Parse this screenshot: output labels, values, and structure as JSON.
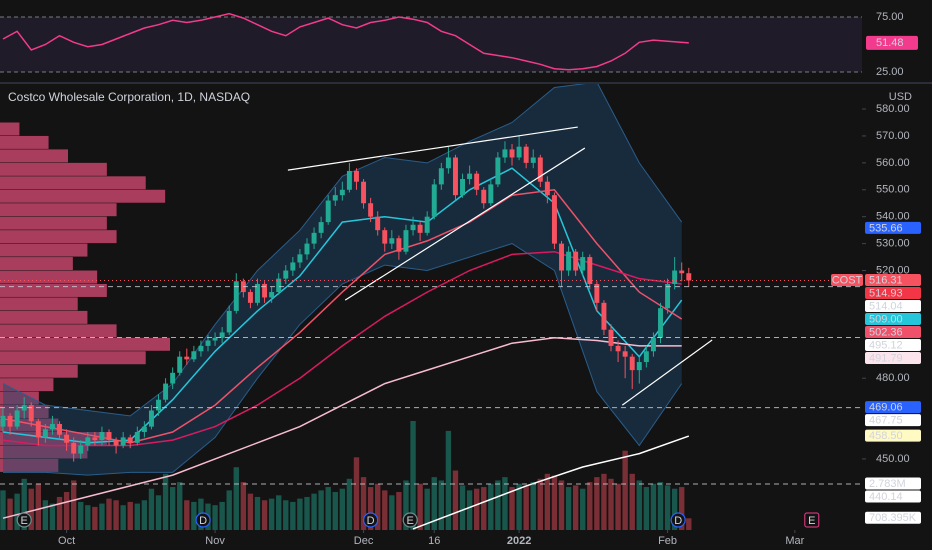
{
  "chart_data": {
    "type": "candlestick",
    "title": "Costco Wholesale Corporation, 1D, NASDAQ",
    "currency": "USD",
    "symbol": "COST",
    "up_color": "#22ab94",
    "down_color": "#f7525f",
    "xlim": [
      -0.42,
      121.5
    ],
    "xticks": [
      {
        "value": 9,
        "label": "Oct"
      },
      {
        "value": 30,
        "label": "Nov"
      },
      {
        "value": 51,
        "label": "Dec"
      },
      {
        "value": 61,
        "label": "16"
      },
      {
        "value": 73,
        "label": "2022"
      },
      {
        "value": 94,
        "label": "Feb"
      },
      {
        "value": 112,
        "label": "Mar"
      }
    ],
    "ylim": [
      423.6,
      589.3
    ],
    "yticks": [
      {
        "value": 580,
        "label": "580.00"
      },
      {
        "value": 570,
        "label": "570.00"
      },
      {
        "value": 560,
        "label": "560.00"
      },
      {
        "value": 550,
        "label": "550.00"
      },
      {
        "value": 540,
        "label": "540.00"
      },
      {
        "value": 530,
        "label": "530.00"
      },
      {
        "value": 520,
        "label": "520.00"
      },
      {
        "value": 480,
        "label": "480.00"
      },
      {
        "value": 450,
        "label": "450.00"
      }
    ],
    "candles": [
      [
        462,
        469,
        460,
        466
      ],
      [
        466,
        467,
        459,
        462
      ],
      [
        462,
        470,
        461,
        468
      ],
      [
        468,
        473,
        465,
        470
      ],
      [
        470,
        471,
        462,
        464
      ],
      [
        464,
        465,
        455,
        458
      ],
      [
        458,
        463,
        456,
        461
      ],
      [
        461,
        466,
        459,
        463
      ],
      [
        463,
        464,
        457,
        459
      ],
      [
        459,
        461,
        453,
        456
      ],
      [
        456,
        458,
        449,
        452
      ],
      [
        452,
        457,
        450,
        455
      ],
      [
        455,
        460,
        453,
        458
      ],
      [
        458,
        460,
        455,
        457
      ],
      [
        457,
        462,
        455,
        460
      ],
      [
        460,
        461,
        455,
        457
      ],
      [
        457,
        458,
        452,
        455
      ],
      [
        455,
        460,
        454,
        458
      ],
      [
        458,
        459,
        454,
        456
      ],
      [
        456,
        462,
        455,
        460
      ],
      [
        460,
        464,
        458,
        462
      ],
      [
        462,
        470,
        461,
        468
      ],
      [
        468,
        474,
        466,
        472
      ],
      [
        472,
        480,
        471,
        478
      ],
      [
        478,
        484,
        476,
        482
      ],
      [
        482,
        490,
        481,
        488
      ],
      [
        488,
        491,
        485,
        487
      ],
      [
        487,
        492,
        486,
        490
      ],
      [
        490,
        494,
        488,
        492
      ],
      [
        492,
        496,
        490,
        494
      ],
      [
        494,
        497,
        492,
        495
      ],
      [
        495,
        499,
        493,
        497
      ],
      [
        497,
        507,
        496,
        505
      ],
      [
        505,
        519,
        504,
        516
      ],
      [
        516,
        517,
        510,
        512
      ],
      [
        512,
        513,
        506,
        508
      ],
      [
        508,
        517,
        507,
        515
      ],
      [
        515,
        516,
        508,
        510
      ],
      [
        510,
        514,
        508,
        512
      ],
      [
        512,
        519,
        511,
        517
      ],
      [
        517,
        522,
        515,
        520
      ],
      [
        520,
        525,
        518,
        523
      ],
      [
        523,
        528,
        521,
        526
      ],
      [
        526,
        532,
        524,
        530
      ],
      [
        530,
        536,
        528,
        534
      ],
      [
        534,
        540,
        532,
        538
      ],
      [
        538,
        548,
        537,
        546
      ],
      [
        546,
        551,
        544,
        548
      ],
      [
        548,
        553,
        546,
        550
      ],
      [
        550,
        560,
        549,
        557
      ],
      [
        557,
        558,
        550,
        553
      ],
      [
        553,
        554,
        543,
        545
      ],
      [
        545,
        547,
        538,
        540
      ],
      [
        540,
        542,
        533,
        535
      ],
      [
        535,
        536,
        527,
        530
      ],
      [
        530,
        535,
        528,
        532
      ],
      [
        532,
        533,
        524,
        527
      ],
      [
        527,
        537,
        526,
        535
      ],
      [
        535,
        540,
        533,
        537
      ],
      [
        537,
        538,
        531,
        534
      ],
      [
        534,
        542,
        533,
        540
      ],
      [
        540,
        554,
        539,
        552
      ],
      [
        552,
        560,
        550,
        558
      ],
      [
        558,
        566,
        556,
        562
      ],
      [
        562,
        563,
        546,
        548
      ],
      [
        548,
        556,
        547,
        554
      ],
      [
        554,
        559,
        552,
        556
      ],
      [
        556,
        557,
        548,
        550
      ],
      [
        550,
        551,
        543,
        545
      ],
      [
        545,
        554,
        544,
        552
      ],
      [
        552,
        564,
        551,
        562
      ],
      [
        562,
        568,
        560,
        565
      ],
      [
        565,
        567,
        559,
        562
      ],
      [
        562,
        570,
        561,
        566
      ],
      [
        566,
        567,
        558,
        560
      ],
      [
        560,
        565,
        558,
        562
      ],
      [
        562,
        563,
        551,
        553
      ],
      [
        553,
        555,
        545,
        548
      ],
      [
        548,
        549,
        528,
        530
      ],
      [
        530,
        531,
        514,
        520
      ],
      [
        520,
        529,
        518,
        527
      ],
      [
        527,
        528,
        518,
        520
      ],
      [
        520,
        527,
        518,
        525
      ],
      [
        525,
        526,
        513,
        515
      ],
      [
        515,
        516,
        505,
        508
      ],
      [
        508,
        509,
        496,
        498
      ],
      [
        498,
        500,
        490,
        492
      ],
      [
        492,
        494,
        486,
        490
      ],
      [
        490,
        492,
        480,
        488
      ],
      [
        488,
        489,
        476,
        483
      ],
      [
        483,
        488,
        478,
        486
      ],
      [
        486,
        492,
        484,
        490
      ],
      [
        490,
        497,
        488,
        495
      ],
      [
        495,
        508,
        493,
        506
      ],
      [
        506,
        517,
        504,
        515
      ],
      [
        515,
        525,
        513,
        520
      ],
      [
        520,
        523,
        516,
        519
      ],
      [
        519,
        521,
        514,
        516.31
      ]
    ],
    "volume": [
      2400000.0,
      1900000.0,
      2200000.0,
      3100000.0,
      2500000.0,
      2800000.0,
      1800000.0,
      1600000.0,
      2000000.0,
      2300000.0,
      3000000.0,
      1700000.0,
      1500000.0,
      1400000.0,
      1600000.0,
      1900000.0,
      1800000.0,
      1500000.0,
      1700000.0,
      1600000.0,
      1800000.0,
      2500000.0,
      2100000.0,
      3400000.0,
      2600000.0,
      2900000.0,
      1800000.0,
      1700000.0,
      1900000.0,
      1600000.0,
      1500000.0,
      1700000.0,
      2400000.0,
      3800000.0,
      2900000.0,
      2200000.0,
      2000000.0,
      1800000.0,
      1900000.0,
      2100000.0,
      1800000.0,
      1700000.0,
      1900000.0,
      2000000.0,
      2200000.0,
      2400000.0,
      2600000.0,
      2300000.0,
      2500000.0,
      3100000.0,
      4400000.0,
      3200000.0,
      2600000.0,
      2800000.0,
      2400000.0,
      2100000.0,
      2300000.0,
      3000000.0,
      6600000.0,
      2800000.0,
      2500000.0,
      3200000.0,
      3000000.0,
      6000000.0,
      3600000.0,
      2700000.0,
      2400000.0,
      2500000.0,
      2600000.0,
      2800000.0,
      3000000.0,
      3200000.0,
      2600000.0,
      2800000.0,
      2700000.0,
      2900000.0,
      3100000.0,
      3400000.0,
      3300000.0,
      3000000.0,
      2600000.0,
      2700000.0,
      2500000.0,
      2900000.0,
      3200000.0,
      3400000.0,
      3100000.0,
      2800000.0,
      4800000.0,
      3400000.0,
      3000000.0,
      2600000.0,
      2800000.0,
      2900000.0,
      2700000.0,
      2500000.0,
      2600000.0,
      708395
    ],
    "volume_ylim": [
      0,
      27000000.0
    ],
    "volume_labels": [
      {
        "value": 2783000,
        "label": "2.783M",
        "bg": "#ffffff",
        "fg": "#131722",
        "dashed": true
      },
      {
        "value": 708395,
        "label": "708.395K",
        "bg": "#ffffff",
        "fg": "#131722"
      }
    ],
    "price_labels": [
      {
        "value": 535.66,
        "bg": "#2962ff",
        "fg": "#ffffff"
      },
      {
        "value": 514.93,
        "bg": "#f23645",
        "fg": "#ffffff"
      },
      {
        "value": 514.04,
        "bg": "#ffffff",
        "fg": "#131722",
        "dashed": true
      },
      {
        "value": 509,
        "label": "509.00",
        "bg": "#26c6da",
        "fg": "#131722"
      },
      {
        "value": 502.36,
        "bg": "#f0516a",
        "fg": "#ffffff"
      },
      {
        "value": 495.12,
        "bg": "#ffffff",
        "fg": "#131722",
        "dashed": true
      },
      {
        "value": 491.79,
        "bg": "#fce4ec",
        "fg": "#131722"
      },
      {
        "value": 469.06,
        "bg": "#2962ff",
        "fg": "#ffffff",
        "dashed": true
      },
      {
        "value": 467.75,
        "bg": "#ffffff",
        "fg": "#131722"
      },
      {
        "value": 458.5,
        "label": "458.50",
        "bg": "#fff9c4",
        "fg": "#131722"
      },
      {
        "value": 440.14,
        "bg": "#ffffff",
        "fg": "#131722"
      }
    ],
    "bollinger": {
      "color": "#1e4a6e",
      "x": [
        0,
        6,
        12,
        18,
        24,
        30,
        36,
        42,
        48,
        54,
        60,
        66,
        72,
        78,
        84,
        90,
        96
      ],
      "upper": [
        478,
        470,
        468,
        466,
        478,
        500,
        520,
        535,
        555,
        562,
        560,
        568,
        575,
        588,
        590,
        560,
        538
      ],
      "lower": [
        445,
        445,
        444,
        445,
        445,
        458,
        480,
        500,
        515,
        522,
        520,
        525,
        530,
        520,
        475,
        455,
        478
      ]
    },
    "lines": [
      {
        "color": "#26c6da",
        "x": [
          0,
          6,
          12,
          18,
          24,
          30,
          36,
          42,
          48,
          54,
          60,
          66,
          72,
          78,
          84,
          90,
          96
        ],
        "values": [
          460,
          458,
          456,
          457,
          472,
          490,
          505,
          518,
          538,
          540,
          538,
          550,
          558,
          545,
          505,
          488,
          509
        ]
      },
      {
        "color": "#f0516a",
        "x": [
          0,
          6,
          12,
          18,
          24,
          30,
          36,
          42,
          48,
          54,
          60,
          66,
          72,
          78,
          84,
          90,
          96
        ],
        "values": [
          465,
          462,
          459,
          456,
          460,
          470,
          484,
          497,
          512,
          526,
          531,
          538,
          548,
          550,
          530,
          512,
          502
        ]
      },
      {
        "color": "#d81b60",
        "x": [
          0,
          6,
          12,
          18,
          24,
          30,
          36,
          42,
          48,
          54,
          60,
          66,
          72,
          78,
          84,
          90,
          96
        ],
        "values": [
          457,
          455,
          455,
          455,
          457,
          462,
          470,
          480,
          492,
          503,
          512,
          520,
          526,
          527,
          522,
          517,
          515
        ]
      },
      {
        "color": "#f8bbd0",
        "x": [
          0,
          6,
          12,
          18,
          24,
          30,
          36,
          42,
          48,
          54,
          60,
          66,
          72,
          78,
          84,
          90,
          96
        ],
        "values": [
          428,
          432,
          436,
          440,
          444,
          450,
          456,
          462,
          470,
          478,
          483,
          488,
          493,
          495,
          494,
          492,
          492
        ]
      },
      {
        "color": "#ffffff",
        "x": [
          58,
          66,
          74,
          82,
          90,
          97
        ],
        "values": [
          424,
          432,
          440,
          447,
          452,
          458.5
        ]
      }
    ],
    "trend_lines": [
      {
        "x": [
          40.3,
          81.3
        ],
        "values": [
          557.3,
          573.3
        ]
      },
      {
        "x": [
          48.4,
          82.3
        ],
        "values": [
          509,
          565.5
        ]
      },
      {
        "x": [
          87.6,
          100.3
        ],
        "values": [
          470,
          494.2
        ]
      }
    ],
    "profile": {
      "color": "#e8507f",
      "bins": [
        445,
        450,
        455,
        460,
        465,
        470,
        475,
        480,
        485,
        490,
        495,
        500,
        505,
        510,
        515,
        520,
        525,
        530,
        535,
        540,
        545,
        550,
        555,
        560,
        565,
        570,
        575
      ],
      "values": [
        60,
        90,
        110,
        60,
        50,
        40,
        55,
        80,
        150,
        175,
        120,
        90,
        80,
        110,
        100,
        75,
        90,
        120,
        110,
        120,
        170,
        150,
        110,
        70,
        50,
        20
      ]
    },
    "rsi": {
      "color": "#f23b8c",
      "ylim": [
        15.9,
        90.45
      ],
      "yticks": [
        {
          "value": 75,
          "label": "75.00"
        },
        {
          "value": 25,
          "label": "25.00"
        }
      ],
      "x": [
        0,
        2,
        4,
        6,
        8,
        10,
        12,
        14,
        16,
        18,
        20,
        22,
        24,
        26,
        28,
        30,
        32,
        34,
        36,
        38,
        40,
        42,
        44,
        46,
        48,
        50,
        52,
        54,
        56,
        58,
        60,
        62,
        64,
        66,
        68,
        70,
        72,
        74,
        76,
        78,
        80,
        82,
        84,
        86,
        88,
        90,
        92,
        94,
        97
      ],
      "values": [
        55,
        62,
        45,
        50,
        58,
        52,
        48,
        50,
        55,
        60,
        65,
        68,
        72,
        70,
        72,
        75,
        78,
        74,
        68,
        62,
        58,
        66,
        70,
        74,
        68,
        65,
        70,
        72,
        75,
        73,
        70,
        62,
        58,
        50,
        42,
        40,
        38,
        35,
        32,
        28,
        27,
        28,
        30,
        35,
        42,
        52,
        54,
        53,
        51.48
      ]
    },
    "events": [
      {
        "label": "E",
        "x": 3
      },
      {
        "label": "D",
        "x": 28.3
      },
      {
        "label": "D",
        "x": 52
      },
      {
        "label": "E",
        "x": 57.6
      },
      {
        "label": "D",
        "x": 95.5
      },
      {
        "label": "E",
        "x": 114.4
      }
    ]
  }
}
